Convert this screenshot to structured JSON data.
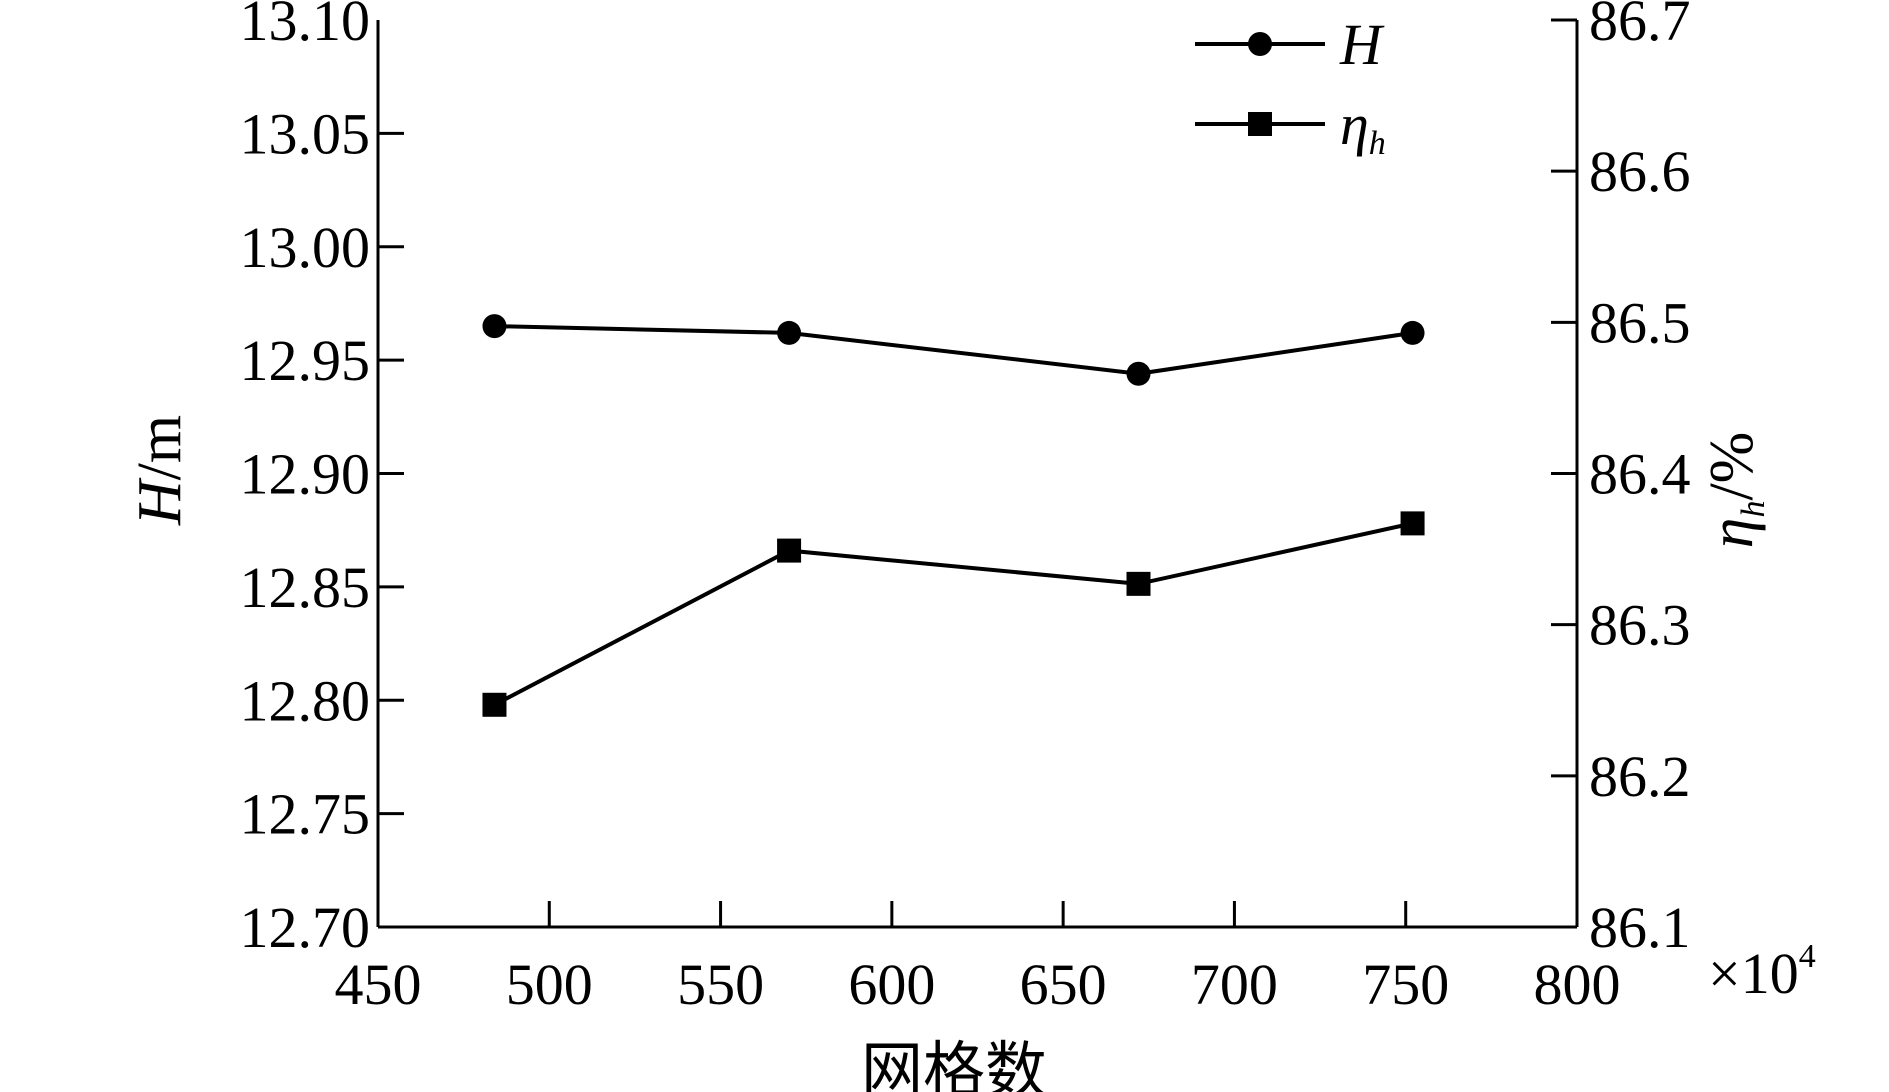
{
  "chart_data": {
    "type": "line",
    "xlabel": "网格数",
    "x_multiplier": "×10",
    "x_multiplier_exp": "4",
    "ylabel_left": {
      "main": "H",
      "unit": "/m"
    },
    "ylabel_right": {
      "main": "η",
      "sub": "h",
      "unit": "/%"
    },
    "xlim": [
      450,
      800
    ],
    "ylim_left": [
      12.7,
      13.1
    ],
    "ylim_right": [
      86.1,
      86.7
    ],
    "x_ticks": [
      "450",
      "500",
      "550",
      "600",
      "650",
      "700",
      "750",
      "800"
    ],
    "y_left_ticks": [
      "12.70",
      "12.75",
      "12.80",
      "12.85",
      "12.90",
      "12.95",
      "13.00",
      "13.05",
      "13.10"
    ],
    "y_right_ticks": [
      "86.1",
      "86.2",
      "86.3",
      "86.4",
      "86.5",
      "86.6",
      "86.7"
    ],
    "grid": false,
    "legend_position": "top-right",
    "series": [
      {
        "name": "H",
        "axis": "left",
        "marker": "circle",
        "color": "#000000",
        "x": [
          484,
          570,
          672,
          752
        ],
        "values": [
          12.965,
          12.962,
          12.944,
          12.962
        ]
      },
      {
        "name": "η",
        "name_sub": "h",
        "axis": "right",
        "marker": "square",
        "color": "#000000",
        "x": [
          484,
          570,
          672,
          752
        ],
        "values": [
          86.247,
          86.349,
          86.327,
          86.367
        ]
      }
    ]
  }
}
